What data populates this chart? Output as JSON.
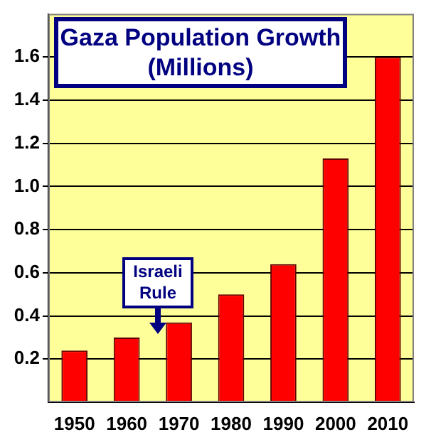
{
  "chart_data": {
    "type": "bar",
    "title": "Gaza Population Growth",
    "subtitle": "(Millions)",
    "categories": [
      "1950",
      "1960",
      "1970",
      "1980",
      "1990",
      "2000",
      "2010"
    ],
    "values": [
      0.24,
      0.3,
      0.37,
      0.5,
      0.64,
      1.13,
      1.6
    ],
    "color": "#ff0000",
    "ylim": [
      0,
      1.8
    ],
    "yticks": [
      0.2,
      0.4,
      0.6,
      0.8,
      {
        "value": 1,
        "label": "1.0"
      },
      1.2,
      1.4,
      1.6
    ],
    "grid": "y",
    "legend": false,
    "annotations": [
      "Israeli Rule"
    ]
  }
}
